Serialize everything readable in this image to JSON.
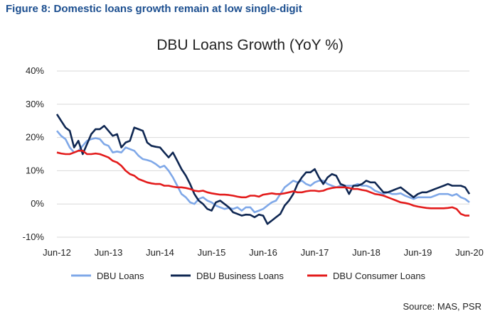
{
  "figure_title": "Figure 8: Domestic loans growth remain at low single-digit",
  "source": "Source: MAS, PSR",
  "colors": {
    "title": "#1b4e8f",
    "gridline": "#d9d9d9"
  },
  "chart_data": {
    "type": "line",
    "title": "DBU Loans Growth (YoY %)",
    "xlabel": "",
    "ylabel": "",
    "ylim": [
      -10,
      40
    ],
    "y_ticks": [
      -10,
      0,
      10,
      20,
      30,
      40
    ],
    "y_tick_labels": [
      "-10%",
      "0%",
      "10%",
      "20%",
      "30%",
      "40%"
    ],
    "x_tick_labels": [
      "Jun-12",
      "Jun-13",
      "Jun-14",
      "Jun-15",
      "Jun-16",
      "Jun-17",
      "Jun-18",
      "Jun-19",
      "Jun-20"
    ],
    "x_range": [
      "Jun-12",
      "Jun-20"
    ],
    "grid": "horizontal",
    "legend_position": "bottom",
    "series": [
      {
        "name": "DBU Loans",
        "color": "#7fa8e8",
        "values": [
          22.0,
          20.5,
          19.5,
          17.0,
          15.5,
          16.0,
          17.5,
          19.0,
          19.5,
          19.8,
          19.5,
          18.0,
          17.5,
          15.5,
          15.8,
          15.5,
          17.0,
          16.5,
          16.0,
          14.5,
          13.5,
          13.2,
          12.8,
          12.0,
          11.0,
          11.5,
          10.0,
          8.0,
          5.5,
          3.0,
          2.0,
          0.5,
          0.0,
          1.5,
          2.0,
          1.0,
          0.5,
          -0.5,
          -1.0,
          -1.5,
          -1.2,
          -1.5,
          -1.0,
          -2.0,
          -1.0,
          -1.0,
          -2.5,
          -2.0,
          -1.5,
          -0.5,
          0.5,
          1.0,
          3.0,
          5.0,
          6.0,
          7.0,
          6.5,
          7.0,
          6.0,
          5.5,
          6.5,
          7.0,
          7.0,
          6.0,
          5.5,
          5.0,
          5.5,
          5.5,
          5.5,
          5.5,
          6.0,
          5.5,
          5.5,
          5.0,
          4.0,
          3.5,
          3.0,
          3.5,
          3.0,
          3.0,
          3.2,
          2.5,
          2.0,
          1.5,
          2.0,
          2.0,
          2.0,
          2.0,
          2.5,
          3.0,
          3.0,
          3.0,
          2.5,
          3.0,
          2.0,
          1.5,
          0.5
        ]
      },
      {
        "name": "DBU Business Loans",
        "color": "#0f2752",
        "values": [
          27.0,
          25.0,
          23.0,
          22.0,
          17.0,
          19.0,
          15.0,
          18.0,
          21.0,
          22.5,
          22.5,
          23.5,
          22.0,
          20.5,
          21.0,
          17.0,
          18.5,
          19.0,
          23.0,
          22.5,
          22.0,
          18.5,
          17.5,
          17.2,
          17.0,
          15.5,
          14.0,
          15.5,
          13.0,
          10.5,
          8.5,
          6.0,
          3.0,
          1.0,
          0.0,
          -1.5,
          -2.0,
          0.5,
          1.0,
          0.0,
          -1.0,
          -2.5,
          -3.0,
          -3.5,
          -3.2,
          -3.3,
          -4.0,
          -3.2,
          -3.5,
          -6.0,
          -5.0,
          -4.0,
          -3.0,
          -0.5,
          1.0,
          3.0,
          6.0,
          8.0,
          9.5,
          9.5,
          10.5,
          8.0,
          6.0,
          8.0,
          9.0,
          8.5,
          6.0,
          5.5,
          3.0,
          5.5,
          5.5,
          6.0,
          7.0,
          6.5,
          6.5,
          5.0,
          3.5,
          3.5,
          4.0,
          4.5,
          5.0,
          4.0,
          3.0,
          2.0,
          3.0,
          3.5,
          3.5,
          4.0,
          4.5,
          5.0,
          5.5,
          6.0,
          5.5,
          5.5,
          5.5,
          5.0,
          3.0
        ]
      },
      {
        "name": "DBU Consumer Loans",
        "color": "#e31b1b",
        "values": [
          15.5,
          15.2,
          15.0,
          15.0,
          15.5,
          16.0,
          16.0,
          15.0,
          15.0,
          15.2,
          15.0,
          14.5,
          14.0,
          13.0,
          12.5,
          11.5,
          10.0,
          9.0,
          8.5,
          7.5,
          7.0,
          6.5,
          6.2,
          6.0,
          6.0,
          5.5,
          5.5,
          5.2,
          5.0,
          5.0,
          4.8,
          4.5,
          4.0,
          3.8,
          4.0,
          3.5,
          3.2,
          3.0,
          2.8,
          2.8,
          2.7,
          2.5,
          2.2,
          2.0,
          2.0,
          2.5,
          2.5,
          2.2,
          2.8,
          3.0,
          3.2,
          3.0,
          3.0,
          3.2,
          3.5,
          3.8,
          3.5,
          3.5,
          3.8,
          4.0,
          4.0,
          3.8,
          4.0,
          4.5,
          4.8,
          5.0,
          5.0,
          5.0,
          4.8,
          4.5,
          4.5,
          4.2,
          4.0,
          3.5,
          3.0,
          2.8,
          2.5,
          2.0,
          1.5,
          1.0,
          0.5,
          0.3,
          0.0,
          -0.5,
          -0.8,
          -1.0,
          -1.2,
          -1.3,
          -1.3,
          -1.3,
          -1.3,
          -1.2,
          -1.0,
          -1.5,
          -3.0,
          -3.5,
          -3.5
        ]
      }
    ]
  }
}
